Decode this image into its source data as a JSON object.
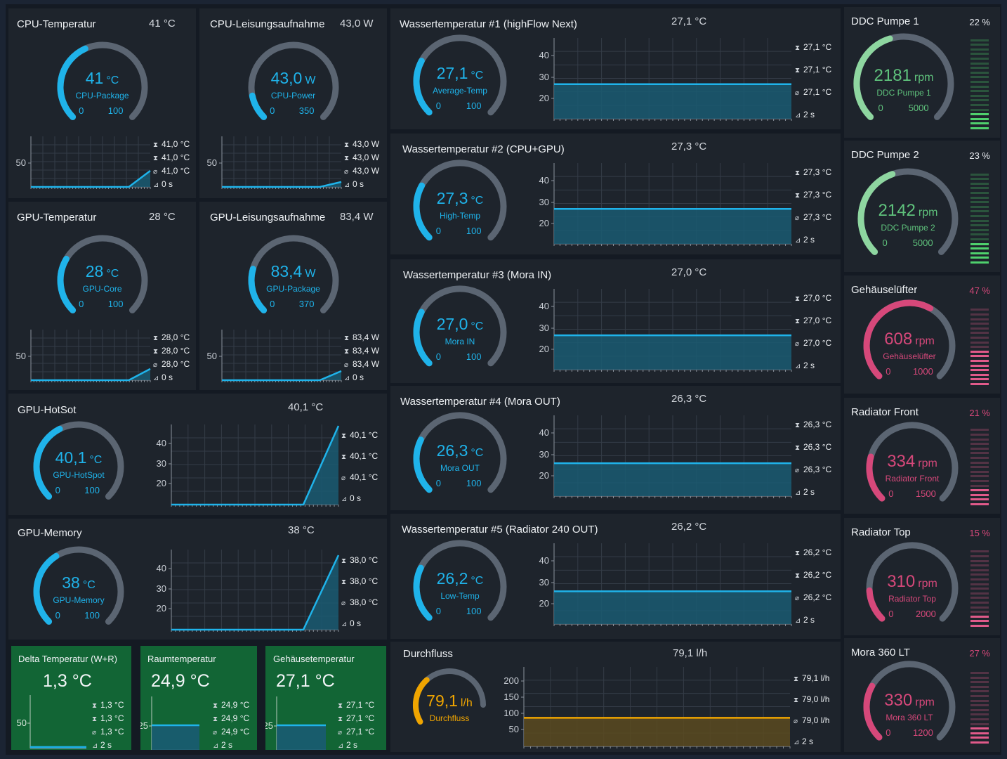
{
  "stat_icons": {
    "max": "⧗",
    "min": "⧗",
    "avg": "⌀",
    "dt": "⊿"
  },
  "colors": {
    "blue": "#1fb3ea",
    "green": "#3ea55a",
    "pink": "#d6487a",
    "amber": "#f0a500",
    "track": "#5b6572",
    "accent_fill": "#1a5b72",
    "amber_fill": "#5a4a20"
  },
  "cpu_temp": {
    "title": "CPU-Temperatur",
    "value": "41 °C",
    "g_val": "41",
    "g_unit": "°C",
    "g_label": "CPU-Package",
    "g_min": "0",
    "g_max": "100",
    "ytick": "50",
    "s_max": "41,0 °C",
    "s_min": "41,0 °C",
    "s_avg": "41,0 °C",
    "s_dt": "0 s",
    "frac": 0.41
  },
  "cpu_power": {
    "title": "CPU-Leisungsaufnahme",
    "value": "43,0 W",
    "g_val": "43,0",
    "g_unit": "W",
    "g_label": "CPU-Power",
    "g_min": "0",
    "g_max": "350",
    "ytick": "50",
    "s_max": "43,0 W",
    "s_min": "43,0 W",
    "s_avg": "43,0 W",
    "s_dt": "0 s",
    "frac": 0.123
  },
  "gpu_temp": {
    "title": "GPU-Temperatur",
    "value": "28 °C",
    "g_val": "28",
    "g_unit": "°C",
    "g_label": "GPU-Core",
    "g_min": "0",
    "g_max": "100",
    "ytick": "50",
    "s_max": "28,0 °C",
    "s_min": "28,0 °C",
    "s_avg": "28,0 °C",
    "s_dt": "0 s",
    "frac": 0.28
  },
  "gpu_power": {
    "title": "GPU-Leisungsaufnahme",
    "value": "83,4 W",
    "g_val": "83,4",
    "g_unit": "W",
    "g_label": "GPU-Package",
    "g_min": "0",
    "g_max": "370",
    "ytick": "50",
    "s_max": "83,4 W",
    "s_min": "83,4 W",
    "s_avg": "83,4 W",
    "s_dt": "0 s",
    "frac": 0.225
  },
  "gpu_hotspot": {
    "title": "GPU-HotSot",
    "value": "40,1 °C",
    "g_val": "40,1",
    "g_unit": "°C",
    "g_label": "GPU-HotSpot",
    "g_min": "0",
    "g_max": "100",
    "yticks": [
      "40",
      "30",
      "20"
    ],
    "s_max": "40,1 °C",
    "s_min": "40,1 °C",
    "s_avg": "40,1 °C",
    "s_dt": "0 s",
    "frac": 0.401
  },
  "gpu_memory": {
    "title": "GPU-Memory",
    "value": "38 °C",
    "g_val": "38",
    "g_unit": "°C",
    "g_label": "GPU-Memory",
    "g_min": "0",
    "g_max": "100",
    "yticks": [
      "40",
      "30",
      "20"
    ],
    "s_max": "38,0 °C",
    "s_min": "38,0 °C",
    "s_avg": "38,0 °C",
    "s_dt": "0 s",
    "frac": 0.38
  },
  "delta": {
    "title": "Delta Temperatur (W+R)",
    "value": "1,3 °C",
    "ytick": "50",
    "s_max": "1,3 °C",
    "s_min": "1,3 °C",
    "s_avg": "1,3 °C",
    "s_dt": "2 s"
  },
  "room": {
    "title": "Raumtemperatur",
    "value": "24,9 °C",
    "ytick": "25",
    "s_max": "24,9 °C",
    "s_min": "24,9 °C",
    "s_avg": "24,9 °C",
    "s_dt": "2 s"
  },
  "case": {
    "title": "Gehäusetemperatur",
    "value": "27,1 °C",
    "ytick": "25",
    "s_max": "27,1 °C",
    "s_min": "27,1 °C",
    "s_avg": "27,1 °C",
    "s_dt": "2 s"
  },
  "water1": {
    "title": "Wassertemperatur #1 (highFlow Next)",
    "value": "27,1 °C",
    "g_val": "27,1",
    "g_unit": "°C",
    "g_label": "Average-Temp",
    "g_min": "0",
    "g_max": "100",
    "yticks": [
      "40",
      "30",
      "20"
    ],
    "s_max": "27,1 °C",
    "s_min": "27,1 °C",
    "s_avg": "27,1 °C",
    "s_dt": "2 s",
    "frac": 0.271
  },
  "water2": {
    "title": "Wassertemperatur #2 (CPU+GPU)",
    "value": "27,3 °C",
    "g_val": "27,3",
    "g_unit": "°C",
    "g_label": "High-Temp",
    "g_min": "0",
    "g_max": "100",
    "yticks": [
      "40",
      "30",
      "20"
    ],
    "s_max": "27,3 °C",
    "s_min": "27,3 °C",
    "s_avg": "27,3 °C",
    "s_dt": "2 s",
    "frac": 0.273
  },
  "water3": {
    "title": "Wassertemperatur #3 (Mora IN)",
    "value": "27,0 °C",
    "g_val": "27,0",
    "g_unit": "°C",
    "g_label": "Mora IN",
    "g_min": "0",
    "g_max": "100",
    "yticks": [
      "40",
      "30",
      "20"
    ],
    "s_max": "27,0 °C",
    "s_min": "27,0 °C",
    "s_avg": "27,0 °C",
    "s_dt": "2 s",
    "frac": 0.27
  },
  "water4": {
    "title": "Wassertemperatur #4 (Mora OUT)",
    "value": "26,3 °C",
    "g_val": "26,3",
    "g_unit": "°C",
    "g_label": "Mora OUT",
    "g_min": "0",
    "g_max": "100",
    "yticks": [
      "40",
      "30",
      "20"
    ],
    "s_max": "26,3 °C",
    "s_min": "26,3 °C",
    "s_avg": "26,3 °C",
    "s_dt": "2 s",
    "frac": 0.263
  },
  "water5": {
    "title": "Wassertemperatur #5 (Radiator 240 OUT)",
    "value": "26,2 °C",
    "g_val": "26,2",
    "g_unit": "°C",
    "g_label": "Low-Temp",
    "g_min": "0",
    "g_max": "100",
    "yticks": [
      "40",
      "30",
      "20"
    ],
    "s_max": "26,2 °C",
    "s_min": "26,2 °C",
    "s_avg": "26,2 °C",
    "s_dt": "2 s",
    "frac": 0.262
  },
  "flow": {
    "title": "Durchfluss",
    "value": "79,1 l/h",
    "g_val": "79,1",
    "g_unit": "l/h",
    "g_label": "Durchfluss",
    "yticks": [
      "200",
      "150",
      "100",
      "50"
    ],
    "s_max": "79,1 l/h",
    "s_min": "79,0 l/h",
    "s_avg": "79,0 l/h",
    "s_dt": "2 s",
    "frac": 0.37
  },
  "pump1": {
    "title": "DDC Pumpe 1",
    "pct": "22 %",
    "g_val": "2181",
    "g_unit": "rpm",
    "g_label": "DDC Pumpe 1",
    "g_min": "0",
    "g_max": "5000",
    "frac": 0.436,
    "bar_frac": 0.22
  },
  "pump2": {
    "title": "DDC Pumpe 2",
    "pct": "23 %",
    "g_val": "2142",
    "g_unit": "rpm",
    "g_label": "DDC Pumpe 2",
    "g_min": "0",
    "g_max": "5000",
    "frac": 0.428,
    "bar_frac": 0.23
  },
  "fan_case": {
    "title": "Gehäuselüfter",
    "pct": "47 %",
    "g_val": "608",
    "g_unit": "rpm",
    "g_label": "Gehäuselüfter",
    "g_min": "0",
    "g_max": "1000",
    "frac": 0.608,
    "bar_frac": 0.47
  },
  "fan_front": {
    "title": "Radiator Front",
    "pct": "21 %",
    "g_val": "334",
    "g_unit": "rpm",
    "g_label": "Radiator Front",
    "g_min": "0",
    "g_max": "1500",
    "frac": 0.223,
    "bar_frac": 0.21
  },
  "fan_top": {
    "title": "Radiator Top",
    "pct": "15 %",
    "g_val": "310",
    "g_unit": "rpm",
    "g_label": "Radiator Top",
    "g_min": "0",
    "g_max": "2000",
    "frac": 0.155,
    "bar_frac": 0.15
  },
  "fan_mora": {
    "title": "Mora 360 LT",
    "pct": "27 %",
    "g_val": "330",
    "g_unit": "rpm",
    "g_label": "Mora 360 LT",
    "g_min": "0",
    "g_max": "1200",
    "frac": 0.275,
    "bar_frac": 0.27
  }
}
